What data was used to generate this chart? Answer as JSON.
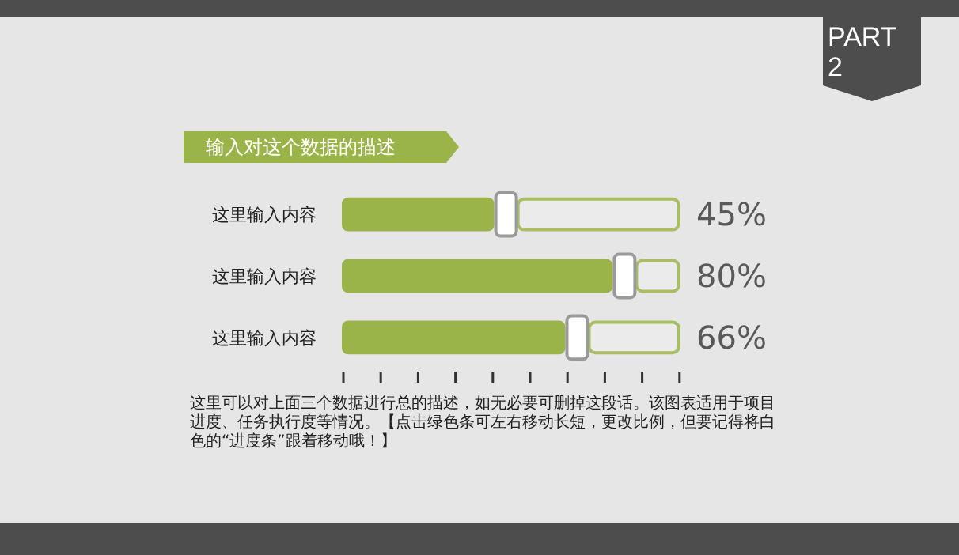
{
  "chart_data": {
    "type": "bar",
    "orientation": "horizontal",
    "title": "输入对这个数据的描述",
    "categories": [
      "这里输入内容",
      "这里输入内容",
      "这里输入内容"
    ],
    "values": [
      45,
      80,
      66
    ],
    "value_labels": [
      "45%",
      "80%",
      "66%"
    ],
    "color": "#9bb44a",
    "tick_labels": "y",
    "annotations": [
      "这里可以对上面三个数据进行总的描述，如无必要可删掉这段话。该图表适用于项目进度、任务执行度等情况。【点击绿色条可左右移动长短，更改比例，但要记得将白色的“进度条”跟着移动哦！】",
      "PART 2"
    ]
  }
}
